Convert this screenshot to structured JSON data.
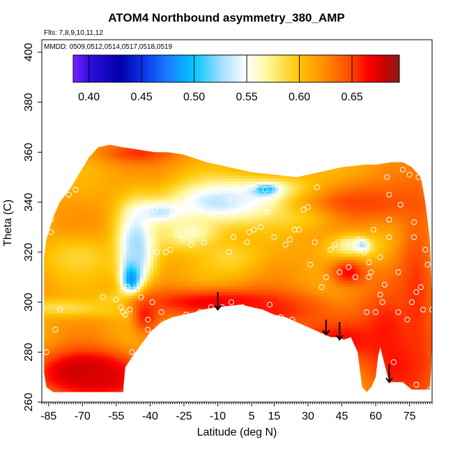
{
  "chart_data": {
    "type": "heatmap",
    "title": "ATOM4 Northbound asymmetry_380_AMP",
    "annotations": [
      "Flts: 7,8,9,10,11,12",
      "MMDD: 0509,0512,0514,0517,0518,0519"
    ],
    "xlabel": "Latitude (deg N)",
    "ylabel": "Theta (C)",
    "xlim": [
      -88,
      85
    ],
    "ylim": [
      260,
      405
    ],
    "x_ticks": [
      -85,
      -70,
      -55,
      -40,
      -25,
      -10,
      5,
      15,
      30,
      45,
      60,
      75
    ],
    "y_ticks": [
      260,
      280,
      300,
      320,
      340,
      360,
      380,
      400
    ],
    "colorbar": {
      "range": [
        0.385,
        0.695
      ],
      "ticks": [
        0.4,
        0.45,
        0.5,
        0.55,
        0.6,
        0.65
      ],
      "tick_labels": [
        "0.40",
        "0.45",
        "0.50",
        "0.55",
        "0.60",
        "0.65"
      ],
      "stops": [
        {
          "v": 0.385,
          "color": "#7f1fff"
        },
        {
          "v": 0.4,
          "color": "#3010e0"
        },
        {
          "v": 0.43,
          "color": "#0000a8"
        },
        {
          "v": 0.45,
          "color": "#0a30e8"
        },
        {
          "v": 0.475,
          "color": "#1a7dff"
        },
        {
          "v": 0.5,
          "color": "#00c8ff"
        },
        {
          "v": 0.525,
          "color": "#9fdcff"
        },
        {
          "v": 0.55,
          "color": "#ffffff"
        },
        {
          "v": 0.57,
          "color": "#fff79a"
        },
        {
          "v": 0.6,
          "color": "#ffc400"
        },
        {
          "v": 0.625,
          "color": "#ff8a00"
        },
        {
          "v": 0.65,
          "color": "#ff4500"
        },
        {
          "v": 0.665,
          "color": "#ff0000"
        },
        {
          "v": 0.68,
          "color": "#cc0000"
        },
        {
          "v": 0.695,
          "color": "#8c1a1a"
        }
      ]
    },
    "field": {
      "background_value": 0.615,
      "features": [
        {
          "x": -48,
          "y": 310,
          "sx": 3,
          "sy": 8,
          "value": 0.4
        },
        {
          "x": -46,
          "y": 322,
          "sx": 6,
          "sy": 12,
          "value": 0.52
        },
        {
          "x": -52,
          "y": 300,
          "sx": 8,
          "sy": 3,
          "value": 0.55
        },
        {
          "x": -75,
          "y": 298,
          "sx": 20,
          "sy": 2.5,
          "value": 0.58
        },
        {
          "x": -72,
          "y": 318,
          "sx": 12,
          "sy": 6,
          "value": 0.59
        },
        {
          "x": -35,
          "y": 336,
          "sx": 8,
          "sy": 3,
          "value": 0.53
        },
        {
          "x": -10,
          "y": 340,
          "sx": 16,
          "sy": 6,
          "value": 0.53
        },
        {
          "x": 15,
          "y": 342,
          "sx": 14,
          "sy": 5,
          "value": 0.52
        },
        {
          "x": 12,
          "y": 345,
          "sx": 4,
          "sy": 1.5,
          "value": 0.46
        },
        {
          "x": 30,
          "y": 338,
          "sx": 10,
          "sy": 5,
          "value": 0.56
        },
        {
          "x": -22,
          "y": 328,
          "sx": 10,
          "sy": 5,
          "value": 0.56
        },
        {
          "x": 50,
          "y": 322,
          "sx": 8,
          "sy": 4,
          "value": 0.56
        },
        {
          "x": 54,
          "y": 323,
          "sx": 2,
          "sy": 1.5,
          "value": 0.52
        },
        {
          "x": -5,
          "y": 318,
          "sx": 10,
          "sy": 5,
          "value": 0.59
        },
        {
          "x": -10,
          "y": 300,
          "sx": 28,
          "sy": 4,
          "value": 0.67
        },
        {
          "x": 10,
          "y": 296,
          "sx": 18,
          "sy": 4,
          "value": 0.66
        },
        {
          "x": 45,
          "y": 285,
          "sx": 18,
          "sy": 6,
          "value": 0.665
        },
        {
          "x": -70,
          "y": 272,
          "sx": 14,
          "sy": 6,
          "value": 0.69
        },
        {
          "x": -62,
          "y": 270,
          "sx": 14,
          "sy": 6,
          "value": 0.675
        },
        {
          "x": -42,
          "y": 295,
          "sx": 5,
          "sy": 6,
          "value": 0.66
        },
        {
          "x": 65,
          "y": 290,
          "sx": 10,
          "sy": 12,
          "value": 0.66
        },
        {
          "x": 72,
          "y": 275,
          "sx": 10,
          "sy": 10,
          "value": 0.665
        },
        {
          "x": 78,
          "y": 300,
          "sx": 6,
          "sy": 30,
          "value": 0.655
        },
        {
          "x": 55,
          "y": 340,
          "sx": 25,
          "sy": 6,
          "value": 0.65
        },
        {
          "x": 48,
          "y": 312,
          "sx": 6,
          "sy": 4,
          "value": 0.665
        },
        {
          "x": -45,
          "y": 360,
          "sx": 12,
          "sy": 3,
          "value": 0.655
        }
      ],
      "boundary": [
        [
          -87,
          318
        ],
        [
          -86,
          325
        ],
        [
          -83,
          334
        ],
        [
          -80,
          340
        ],
        [
          -75,
          346
        ],
        [
          -71,
          352
        ],
        [
          -67,
          358
        ],
        [
          -63,
          362
        ],
        [
          -58,
          363
        ],
        [
          -52,
          362
        ],
        [
          -45,
          361
        ],
        [
          -38,
          360
        ],
        [
          -32,
          360
        ],
        [
          -25,
          359
        ],
        [
          -15,
          356
        ],
        [
          -5,
          354
        ],
        [
          5,
          352
        ],
        [
          15,
          351
        ],
        [
          25,
          350
        ],
        [
          35,
          352
        ],
        [
          45,
          354
        ],
        [
          55,
          355
        ],
        [
          60,
          355
        ],
        [
          67,
          356
        ],
        [
          72,
          356
        ],
        [
          76,
          354
        ],
        [
          80,
          350
        ],
        [
          82,
          340
        ],
        [
          84,
          325
        ],
        [
          85,
          300
        ],
        [
          85,
          285
        ],
        [
          84.5,
          272
        ],
        [
          84,
          265
        ],
        [
          80,
          265
        ],
        [
          76,
          265
        ],
        [
          72,
          268
        ],
        [
          68,
          268
        ],
        [
          66,
          268
        ],
        [
          64,
          275
        ],
        [
          62,
          282
        ],
        [
          61,
          278
        ],
        [
          60,
          270
        ],
        [
          58,
          266
        ],
        [
          56,
          264
        ],
        [
          54,
          266
        ],
        [
          52,
          280
        ],
        [
          49,
          286
        ],
        [
          46,
          285
        ],
        [
          43,
          286
        ],
        [
          40,
          286
        ],
        [
          35,
          288
        ],
        [
          30,
          290
        ],
        [
          20,
          294
        ],
        [
          15,
          295
        ],
        [
          10,
          297
        ],
        [
          0,
          299
        ],
        [
          -10,
          298
        ],
        [
          -17,
          297
        ],
        [
          -20,
          296
        ],
        [
          -25,
          295
        ],
        [
          -30,
          294
        ],
        [
          -35,
          292
        ],
        [
          -40,
          288
        ],
        [
          -44,
          283
        ],
        [
          -48,
          278
        ],
        [
          -51,
          274
        ],
        [
          -52,
          264
        ],
        [
          -70,
          264
        ],
        [
          -83,
          264
        ],
        [
          -86,
          266
        ],
        [
          -87,
          272
        ],
        [
          -87,
          300
        ]
      ]
    },
    "sample_points": [
      [
        -86,
        280
      ],
      [
        -84,
        328
      ],
      [
        -84,
        333
      ],
      [
        -82,
        289
      ],
      [
        -80,
        297
      ],
      [
        -76,
        343
      ],
      [
        -73,
        345
      ],
      [
        -61,
        302
      ],
      [
        -55,
        301
      ],
      [
        -53,
        298
      ],
      [
        -52,
        296
      ],
      [
        -51,
        295
      ],
      [
        -50,
        306
      ],
      [
        -49,
        297
      ],
      [
        -48,
        280
      ],
      [
        -46,
        276
      ],
      [
        -44,
        302
      ],
      [
        -43,
        331
      ],
      [
        -42,
        336
      ],
      [
        -41,
        289
      ],
      [
        -41,
        293
      ],
      [
        -39,
        300
      ],
      [
        -38,
        337
      ],
      [
        -37,
        320
      ],
      [
        -35,
        296
      ],
      [
        -33,
        320
      ],
      [
        -31,
        321
      ],
      [
        -30,
        336
      ],
      [
        -28,
        327
      ],
      [
        -26,
        325
      ],
      [
        -24,
        295
      ],
      [
        -22,
        323
      ],
      [
        -20,
        341
      ],
      [
        -18,
        296
      ],
      [
        -16,
        324
      ],
      [
        -13,
        298
      ],
      [
        -10,
        344
      ],
      [
        -8,
        298
      ],
      [
        -5,
        341
      ],
      [
        -5,
        320
      ],
      [
        -4,
        300
      ],
      [
        -3,
        326
      ],
      [
        -1,
        345
      ],
      [
        1,
        298
      ],
      [
        3,
        324
      ],
      [
        4,
        328
      ],
      [
        6,
        346
      ],
      [
        6,
        329
      ],
      [
        9,
        330
      ],
      [
        11,
        345
      ],
      [
        12,
        336
      ],
      [
        13,
        299
      ],
      [
        15,
        326
      ],
      [
        17,
        343
      ],
      [
        18,
        294
      ],
      [
        20,
        323
      ],
      [
        22,
        325
      ],
      [
        23,
        293
      ],
      [
        24,
        329
      ],
      [
        26,
        329
      ],
      [
        28,
        337
      ],
      [
        30,
        338
      ],
      [
        31,
        315
      ],
      [
        33,
        324
      ],
      [
        34,
        346
      ],
      [
        36,
        306
      ],
      [
        38,
        310
      ],
      [
        40,
        321
      ],
      [
        42,
        323
      ],
      [
        44,
        312
      ],
      [
        46,
        324
      ],
      [
        48,
        314
      ],
      [
        49,
        324
      ],
      [
        51,
        310
      ],
      [
        52,
        325
      ],
      [
        53,
        321
      ],
      [
        55,
        320
      ],
      [
        56,
        296
      ],
      [
        57,
        316
      ],
      [
        57,
        310
      ],
      [
        58,
        312
      ],
      [
        59,
        329
      ],
      [
        60,
        296
      ],
      [
        62,
        303
      ],
      [
        62,
        318
      ],
      [
        63,
        300
      ],
      [
        64,
        307
      ],
      [
        65,
        350
      ],
      [
        66,
        343
      ],
      [
        66,
        333
      ],
      [
        66,
        326
      ],
      [
        68,
        276
      ],
      [
        70,
        296
      ],
      [
        70,
        312
      ],
      [
        71,
        339
      ],
      [
        72,
        353
      ],
      [
        74,
        293
      ],
      [
        75,
        351
      ],
      [
        76,
        300
      ],
      [
        77,
        326
      ],
      [
        77,
        332
      ],
      [
        78,
        267
      ],
      [
        78,
        304
      ],
      [
        80,
        306
      ],
      [
        81,
        297
      ],
      [
        82,
        321
      ],
      [
        83,
        315
      ],
      [
        84,
        265
      ],
      [
        85,
        297
      ],
      [
        79,
        350
      ]
    ],
    "arrows": [
      {
        "x": -10,
        "y_start": 304,
        "y_end": 297
      },
      {
        "x": 38,
        "y_start": 293,
        "y_end": 287
      },
      {
        "x": 44,
        "y_start": 292,
        "y_end": 285
      },
      {
        "x": 66,
        "y_start": 275,
        "y_end": 268
      }
    ]
  }
}
